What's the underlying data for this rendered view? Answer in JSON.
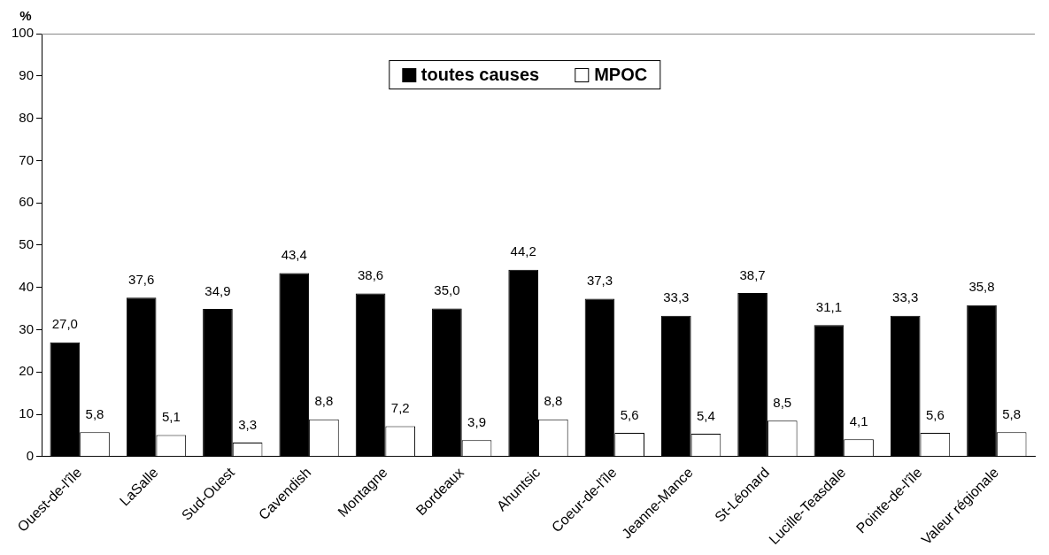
{
  "chart_data": {
    "type": "bar",
    "ylabel": "%",
    "categories": [
      "Ouest-de-l'île",
      "LaSalle",
      "Sud-Ouest",
      "Cavendish",
      "Montagne",
      "Bordeaux",
      "Ahuntsic",
      "Coeur-de-l'île",
      "Jeanne-Mance",
      "St-Léonard",
      "Lucille-Teasdale",
      "Pointe-de-l'île",
      "Valeur régionale"
    ],
    "series": [
      {
        "name": "toutes causes",
        "color": "#000000",
        "values": [
          27.0,
          37.6,
          34.9,
          43.4,
          38.6,
          35.0,
          44.2,
          37.3,
          33.3,
          38.7,
          31.1,
          33.3,
          35.8
        ],
        "value_labels": [
          "27,0",
          "37,6",
          "34,9",
          "43,4",
          "38,6",
          "35,0",
          "44,2",
          "37,3",
          "33,3",
          "38,7",
          "31,1",
          "33,3",
          "35,8"
        ]
      },
      {
        "name": "MPOC",
        "color": "#ffffff",
        "values": [
          5.8,
          5.1,
          3.3,
          8.8,
          7.2,
          3.9,
          8.8,
          5.6,
          5.4,
          8.5,
          4.1,
          5.6,
          5.8
        ],
        "value_labels": [
          "5,8",
          "5,1",
          "3,3",
          "8,8",
          "7,2",
          "3,9",
          "8,8",
          "5,6",
          "5,4",
          "8,5",
          "4,1",
          "5,6",
          "5,8"
        ]
      }
    ],
    "ylim": [
      0,
      100
    ],
    "yticks": [
      0,
      10,
      20,
      30,
      40,
      50,
      60,
      70,
      80,
      90,
      100
    ],
    "grid": false,
    "legend": "top"
  }
}
